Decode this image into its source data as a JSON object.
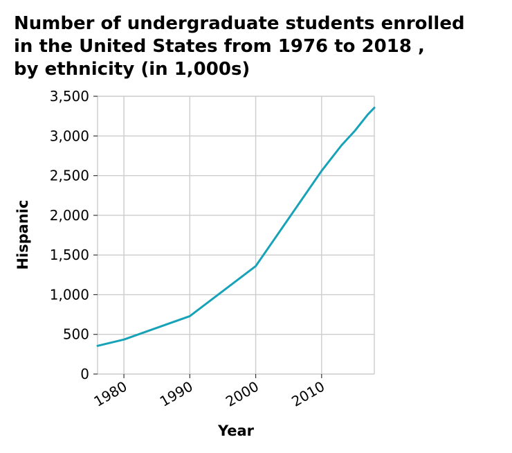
{
  "chart_data": {
    "type": "line",
    "title_lines": [
      "Number of undergraduate students enrolled",
      "in the United States from 1976 to 2018 ,",
      "by ethnicity (in 1,000s)"
    ],
    "xlabel": "Year",
    "ylabel": "Hispanic",
    "xlim": [
      1976,
      2018
    ],
    "ylim": [
      0,
      3500
    ],
    "x_ticks": [
      1980,
      1990,
      2000,
      2010
    ],
    "x_tick_labels": [
      "1980",
      "1990",
      "2000",
      "2010"
    ],
    "y_ticks": [
      0,
      500,
      1000,
      1500,
      2000,
      2500,
      3000,
      3500
    ],
    "y_tick_labels": [
      "0",
      "500",
      "1,000",
      "1,500",
      "2,000",
      "2,500",
      "3,000",
      "3,500"
    ],
    "grid": true,
    "series": [
      {
        "color": "#17a2b8",
        "x": [
          1976,
          1980,
          1990,
          2000,
          2010,
          2013,
          2015,
          2017,
          2018
        ],
        "y": [
          355,
          435,
          730,
          1360,
          2560,
          2880,
          3060,
          3270,
          3355
        ]
      }
    ]
  }
}
